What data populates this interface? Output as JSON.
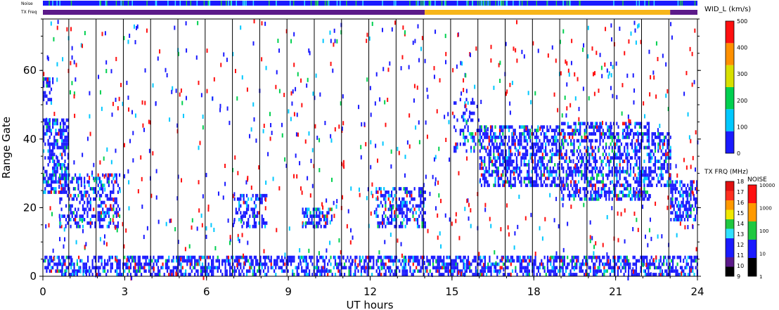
{
  "chart_data": {
    "type": "heatmap",
    "title": "",
    "xlabel": "UT hours",
    "ylabel": "Range Gate",
    "xlim": [
      0,
      24
    ],
    "ylim": [
      0,
      75
    ],
    "x_ticks": [
      "0",
      "3",
      "6",
      "9",
      "12",
      "15",
      "18",
      "21",
      "24"
    ],
    "y_ticks": [
      "0",
      "20",
      "40",
      "60"
    ],
    "scan_boundary_hours": [
      0.95,
      1.95,
      2.95,
      3.95,
      4.95,
      5.95,
      6.95,
      7.95,
      8.95,
      9.95,
      10.95,
      11.95,
      12.95,
      13.95,
      14.95,
      15.95,
      16.95,
      17.95,
      18.95,
      19.95,
      20.95,
      21.95,
      22.95
    ],
    "strips": {
      "noise_label": "Noise",
      "txfreq_label": "TX Freq",
      "txfreq_segments": [
        {
          "from": 0,
          "to": 14.0,
          "color": "#5c1a8a"
        },
        {
          "from": 14.0,
          "to": 23.0,
          "color": "#f7b51a"
        },
        {
          "from": 23.0,
          "to": 24,
          "color": "#5c1a8a"
        }
      ]
    },
    "colorbar_main": {
      "title": "WID_L (km/s)",
      "ticks": [
        "0",
        "100",
        "200",
        "300",
        "400",
        "500"
      ],
      "colors": [
        "#1a1aff",
        "#00c8ff",
        "#00d050",
        "#d8e000",
        "#ff9000",
        "#ff1010"
      ]
    },
    "colorbar_freq": {
      "title": "TX FRQ (MHz)",
      "ticks": [
        "9",
        "10",
        "11",
        "12",
        "13",
        "14",
        "15",
        "16",
        "17",
        "18"
      ],
      "colors": [
        "#000000",
        "#5c1a8a",
        "#1a1aff",
        "#1a1aff",
        "#30e0ff",
        "#20c840",
        "#f0e800",
        "#ff9900",
        "#ff3020",
        "#e01010"
      ]
    },
    "colorbar_noise": {
      "title": "NOISE",
      "ticks": [
        "1",
        "10",
        "100",
        "1000",
        "10000"
      ],
      "colors": [
        "#000000",
        "#1a1aff",
        "#20c840",
        "#ff9900",
        "#ff1010"
      ]
    },
    "echo_regions": [
      {
        "t0": 0.0,
        "t1": 0.9,
        "g0": 24,
        "g1": 46,
        "density": 0.55
      },
      {
        "t0": 0.0,
        "t1": 0.35,
        "g0": 50,
        "g1": 58,
        "density": 0.5
      },
      {
        "t0": 0.6,
        "t1": 2.8,
        "g0": 14,
        "g1": 30,
        "density": 0.4
      },
      {
        "t0": 7.0,
        "t1": 8.2,
        "g0": 14,
        "g1": 24,
        "density": 0.4
      },
      {
        "t0": 9.5,
        "t1": 10.6,
        "g0": 14,
        "g1": 20,
        "density": 0.55
      },
      {
        "t0": 12.2,
        "t1": 14.0,
        "g0": 14,
        "g1": 26,
        "density": 0.5
      },
      {
        "t0": 15.0,
        "t1": 16.0,
        "g0": 36,
        "g1": 52,
        "density": 0.25
      },
      {
        "t0": 16.0,
        "t1": 19.0,
        "g0": 26,
        "g1": 44,
        "density": 0.55
      },
      {
        "t0": 19.0,
        "t1": 22.2,
        "g0": 22,
        "g1": 45,
        "density": 0.5
      },
      {
        "t0": 22.2,
        "t1": 23.0,
        "g0": 26,
        "g1": 42,
        "density": 0.5
      },
      {
        "t0": 23.0,
        "t1": 24.0,
        "g0": 16,
        "g1": 28,
        "density": 0.6
      },
      {
        "t0": 0.0,
        "t1": 24.0,
        "g0": 0,
        "g1": 6,
        "density": 0.55
      }
    ]
  }
}
